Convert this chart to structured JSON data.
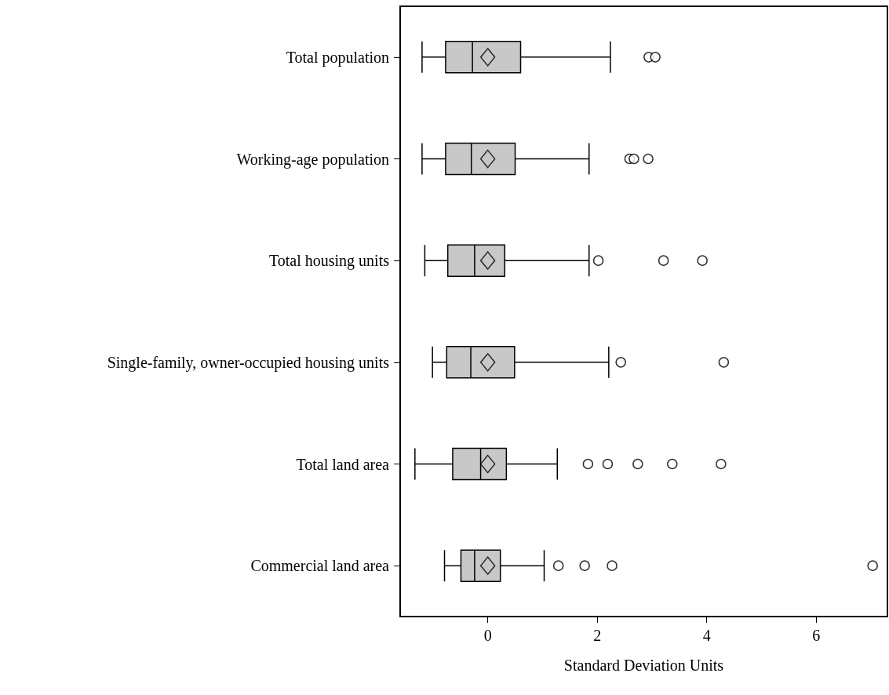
{
  "chart_data": {
    "type": "box",
    "orientation": "horizontal",
    "xlabel": "Standard Deviation Units",
    "categories": [
      "Total population",
      "Working-age population",
      "Total housing units",
      "Single-family, owner-occupied housing units",
      "Total land area",
      "Commercial land area"
    ],
    "xlim": [
      -1.6,
      7.3
    ],
    "xticks": [
      0,
      2,
      4,
      6
    ],
    "grid": false,
    "series": [
      {
        "color": "#c8c8c8",
        "boxes": [
          {
            "low": -1.2,
            "q1": -0.77,
            "median": -0.28,
            "q3": 0.6,
            "high": 2.24,
            "mean": 0,
            "outliers": [
              2.94,
              3.06
            ]
          },
          {
            "low": -1.2,
            "q1": -0.77,
            "median": -0.3,
            "q3": 0.5,
            "high": 1.85,
            "mean": 0,
            "outliers": [
              2.59,
              2.67,
              2.93
            ]
          },
          {
            "low": -1.15,
            "q1": -0.73,
            "median": -0.24,
            "q3": 0.31,
            "high": 1.85,
            "mean": 0,
            "outliers": [
              2.02,
              3.21,
              3.92
            ]
          },
          {
            "low": -1.01,
            "q1": -0.75,
            "median": -0.31,
            "q3": 0.49,
            "high": 2.21,
            "mean": 0,
            "outliers": [
              2.43,
              4.31
            ]
          },
          {
            "low": -1.33,
            "q1": -0.64,
            "median": -0.13,
            "q3": 0.34,
            "high": 1.27,
            "mean": 0,
            "outliers": [
              1.83,
              2.19,
              2.74,
              3.37,
              4.26
            ]
          },
          {
            "low": -0.79,
            "q1": -0.49,
            "median": -0.24,
            "q3": 0.23,
            "high": 1.03,
            "mean": 0,
            "outliers": [
              1.29,
              1.77,
              2.27,
              7.03
            ]
          }
        ]
      }
    ]
  }
}
